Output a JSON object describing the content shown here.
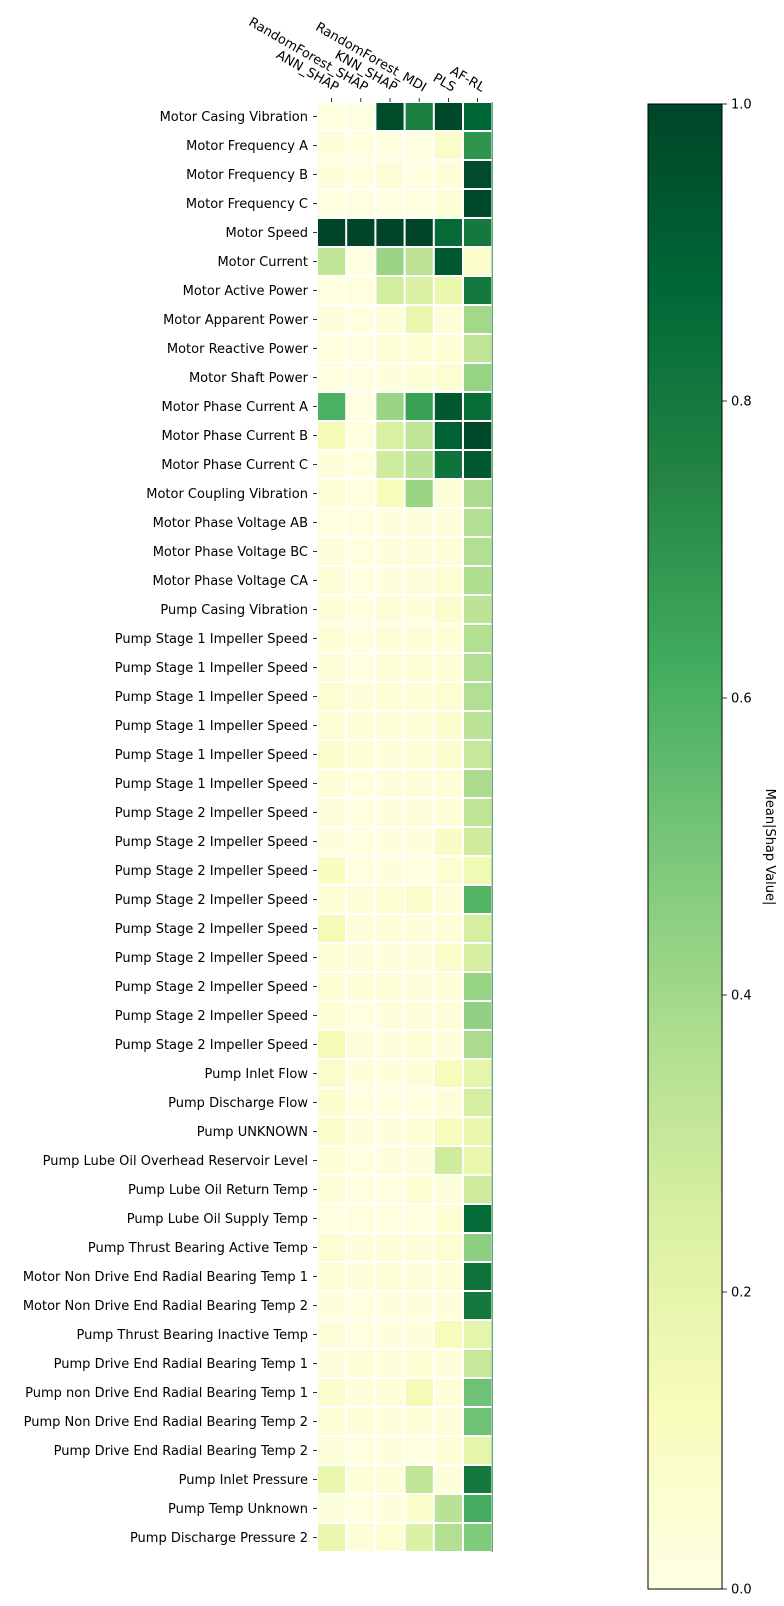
{
  "chart_data": {
    "type": "heatmap",
    "title": "",
    "xlabel": "",
    "ylabel": "",
    "columns": [
      "ANN_SHAP",
      "RandomForest_SHAP",
      "KNN_SHAP",
      "RandomForest_MDI",
      "PLS",
      "AF-RL"
    ],
    "rows": [
      "Motor Casing Vibration",
      "Motor Frequency A",
      "Motor Frequency B",
      "Motor Frequency C",
      "Motor Speed",
      "Motor Current",
      "Motor Active Power",
      "Motor Apparent Power",
      "Motor Reactive Power",
      "Motor Shaft Power",
      "Motor Phase Current A",
      "Motor Phase Current B",
      "Motor Phase Current C",
      "Motor Coupling Vibration",
      "Motor Phase Voltage AB",
      "Motor Phase Voltage BC",
      "Motor Phase Voltage CA",
      "Pump Casing Vibration",
      "Pump Stage 1 Impeller Speed",
      "Pump Stage 1 Impeller Speed",
      "Pump Stage 1 Impeller Speed",
      "Pump Stage 1 Impeller Speed",
      "Pump Stage 1 Impeller Speed",
      "Pump Stage 1 Impeller Speed",
      "Pump Stage 2 Impeller Speed",
      "Pump Stage 2 Impeller Speed",
      "Pump Stage 2 Impeller Speed",
      "Pump Stage 2 Impeller Speed",
      "Pump Stage 2 Impeller Speed",
      "Pump Stage 2 Impeller Speed",
      "Pump Stage 2 Impeller Speed",
      "Pump Stage 2 Impeller Speed",
      "Pump Stage 2 Impeller Speed",
      "Pump Inlet Flow",
      "Pump Discharge Flow",
      "Pump UNKNOWN",
      "Pump Lube Oil Overhead Reservoir Level",
      "Pump Lube Oil Return Temp",
      "Pump Lube Oil Supply Temp",
      "Pump Thrust Bearing Active Temp",
      "Motor Non Drive End Radial Bearing Temp 1",
      "Motor Non Drive End Radial Bearing Temp 2",
      "Pump Thrust Bearing Inactive Temp",
      "Pump Drive End Radial Bearing Temp 1",
      "Pump non Drive End Radial Bearing Temp 1",
      "Pump Non Drive End Radial Bearing Temp 2",
      "Pump Drive End Radial Bearing Temp 2",
      "Pump Inlet Pressure",
      "Pump Temp Unknown",
      "Pump Discharge Pressure 2"
    ],
    "values": [
      [
        0.02,
        0.01,
        0.97,
        0.78,
        0.99,
        0.88
      ],
      [
        0.03,
        0.02,
        0.02,
        0.01,
        0.08,
        0.7
      ],
      [
        0.03,
        0.02,
        0.04,
        0.02,
        0.04,
        0.98
      ],
      [
        0.02,
        0.01,
        0.02,
        0.02,
        0.05,
        0.99
      ],
      [
        1.0,
        1.0,
        1.0,
        1.0,
        0.86,
        0.8
      ],
      [
        0.32,
        0.02,
        0.42,
        0.33,
        0.93,
        0.08
      ],
      [
        0.02,
        0.02,
        0.27,
        0.24,
        0.18,
        0.8
      ],
      [
        0.03,
        0.02,
        0.04,
        0.18,
        0.04,
        0.4
      ],
      [
        0.02,
        0.01,
        0.04,
        0.06,
        0.05,
        0.32
      ],
      [
        0.02,
        0.01,
        0.03,
        0.04,
        0.06,
        0.43
      ],
      [
        0.6,
        0.02,
        0.42,
        0.66,
        0.93,
        0.85
      ],
      [
        0.13,
        0.02,
        0.25,
        0.32,
        0.9,
        0.99
      ],
      [
        0.03,
        0.02,
        0.28,
        0.34,
        0.82,
        0.93
      ],
      [
        0.05,
        0.02,
        0.12,
        0.42,
        0.04,
        0.38
      ],
      [
        0.02,
        0.02,
        0.03,
        0.03,
        0.03,
        0.36
      ],
      [
        0.03,
        0.02,
        0.03,
        0.03,
        0.04,
        0.36
      ],
      [
        0.04,
        0.02,
        0.03,
        0.03,
        0.06,
        0.37
      ],
      [
        0.04,
        0.02,
        0.04,
        0.03,
        0.07,
        0.33
      ],
      [
        0.05,
        0.02,
        0.04,
        0.04,
        0.05,
        0.36
      ],
      [
        0.04,
        0.02,
        0.04,
        0.05,
        0.05,
        0.36
      ],
      [
        0.06,
        0.03,
        0.05,
        0.04,
        0.06,
        0.36
      ],
      [
        0.05,
        0.04,
        0.05,
        0.04,
        0.07,
        0.33
      ],
      [
        0.07,
        0.04,
        0.03,
        0.04,
        0.07,
        0.3
      ],
      [
        0.04,
        0.02,
        0.03,
        0.03,
        0.04,
        0.38
      ],
      [
        0.03,
        0.02,
        0.03,
        0.03,
        0.04,
        0.32
      ],
      [
        0.03,
        0.02,
        0.03,
        0.03,
        0.09,
        0.28
      ],
      [
        0.1,
        0.02,
        0.03,
        0.02,
        0.06,
        0.15
      ],
      [
        0.05,
        0.04,
        0.06,
        0.08,
        0.04,
        0.58
      ],
      [
        0.14,
        0.03,
        0.04,
        0.03,
        0.05,
        0.26
      ],
      [
        0.04,
        0.03,
        0.03,
        0.03,
        0.08,
        0.26
      ],
      [
        0.06,
        0.04,
        0.04,
        0.03,
        0.04,
        0.43
      ],
      [
        0.05,
        0.02,
        0.03,
        0.03,
        0.03,
        0.44
      ],
      [
        0.14,
        0.03,
        0.03,
        0.04,
        0.03,
        0.38
      ],
      [
        0.08,
        0.03,
        0.03,
        0.04,
        0.12,
        0.2
      ],
      [
        0.07,
        0.02,
        0.02,
        0.02,
        0.04,
        0.26
      ],
      [
        0.08,
        0.03,
        0.03,
        0.04,
        0.12,
        0.18
      ],
      [
        0.05,
        0.02,
        0.03,
        0.03,
        0.28,
        0.18
      ],
      [
        0.04,
        0.02,
        0.02,
        0.06,
        0.03,
        0.28
      ],
      [
        0.02,
        0.02,
        0.02,
        0.02,
        0.06,
        0.86
      ],
      [
        0.06,
        0.03,
        0.04,
        0.03,
        0.06,
        0.45
      ],
      [
        0.04,
        0.03,
        0.04,
        0.03,
        0.04,
        0.82
      ],
      [
        0.03,
        0.02,
        0.03,
        0.03,
        0.03,
        0.8
      ],
      [
        0.04,
        0.02,
        0.03,
        0.03,
        0.12,
        0.2
      ],
      [
        0.03,
        0.04,
        0.03,
        0.06,
        0.03,
        0.3
      ],
      [
        0.07,
        0.03,
        0.04,
        0.14,
        0.03,
        0.52
      ],
      [
        0.04,
        0.04,
        0.03,
        0.04,
        0.03,
        0.52
      ],
      [
        0.03,
        0.02,
        0.03,
        0.02,
        0.05,
        0.2
      ],
      [
        0.18,
        0.04,
        0.04,
        0.32,
        0.03,
        0.8
      ],
      [
        0.03,
        0.02,
        0.03,
        0.07,
        0.34,
        0.62
      ],
      [
        0.18,
        0.04,
        0.06,
        0.24,
        0.36,
        0.48
      ]
    ],
    "colorbar": {
      "label": "Mean|Shap Value|",
      "min": 0.0,
      "max": 1.0,
      "ticks": [
        0.0,
        0.2,
        0.4,
        0.6,
        0.8,
        1.0
      ],
      "tick_labels": [
        "0.0",
        "0.2",
        "0.4",
        "0.6",
        "0.8",
        "1.0"
      ],
      "colormap": "YlGn",
      "colormap_stops": [
        "#ffffe5",
        "#f7fcb9",
        "#d9f0a3",
        "#addd8e",
        "#78c679",
        "#41ab5d",
        "#238443",
        "#006837",
        "#004529"
      ]
    },
    "grid": false,
    "legend": "right"
  }
}
